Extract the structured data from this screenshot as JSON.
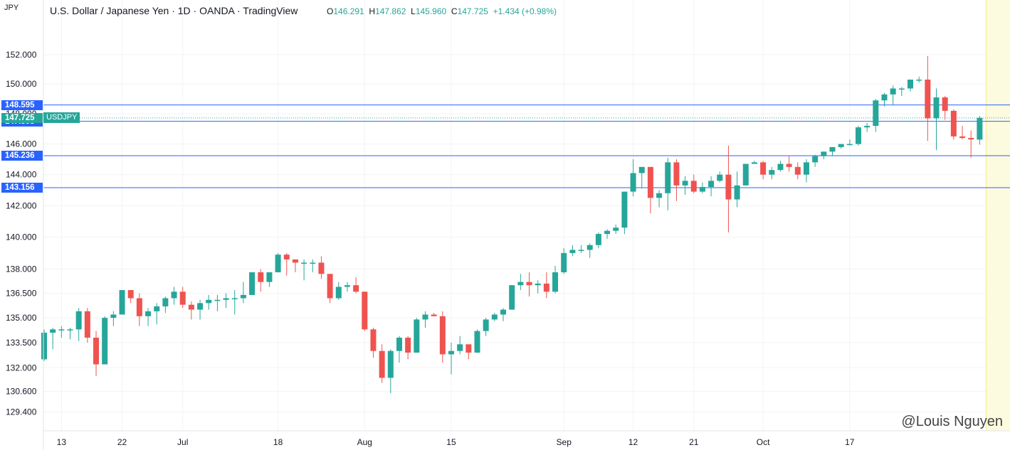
{
  "unit_label": "JPY",
  "header": {
    "title": "U.S. Dollar / Japanese Yen · 1D · OANDA · TradingView",
    "ohlc": {
      "open_prefix": "O",
      "open": "146.291",
      "high_prefix": "H",
      "high": "147.862",
      "low_prefix": "L",
      "low": "145.960",
      "close_prefix": "C",
      "close": "147.725",
      "change": "+1.434 (+0.98%)"
    }
  },
  "price_tag": {
    "symbol": "USDJPY",
    "value": "147.725"
  },
  "levels": [
    {
      "value": 148.595,
      "label": "148.595"
    },
    {
      "value": 147.505,
      "label": "147.505"
    },
    {
      "value": 145.236,
      "label": "145.236"
    },
    {
      "value": 143.156,
      "label": "143.156"
    }
  ],
  "watermark": "@Louis Nguyen",
  "colors": {
    "up": "#26a69a",
    "down": "#ef5350",
    "level_line": "#2962ff",
    "level_tag": "#2962ff",
    "future_zone": "#fdfbdf"
  },
  "chart_data": {
    "type": "candlestick",
    "title": "U.S. Dollar / Japanese Yen · 1D · OANDA · TradingView",
    "ylabel": "JPY",
    "scale": "log",
    "ylim": [
      128.3,
      154.3
    ],
    "y_ticks": [
      "152.000",
      "150.000",
      "148.000",
      "146.000",
      "144.000",
      "142.000",
      "140.000",
      "138.000",
      "136.500",
      "135.000",
      "133.500",
      "132.000",
      "130.600",
      "129.400"
    ],
    "x_ticks": [
      {
        "label": "13",
        "index": 2
      },
      {
        "label": "22",
        "index": 9
      },
      {
        "label": "Jul",
        "index": 16
      },
      {
        "label": "18",
        "index": 27
      },
      {
        "label": "Aug",
        "index": 37
      },
      {
        "label": "15",
        "index": 47
      },
      {
        "label": "Sep",
        "index": 60
      },
      {
        "label": "12",
        "index": 68
      },
      {
        "label": "21",
        "index": 75
      },
      {
        "label": "Oct",
        "index": 83
      },
      {
        "label": "17",
        "index": 93
      }
    ],
    "total_slots": 100,
    "candles": [
      [
        132.5,
        134.3,
        132.4,
        134.1
      ],
      [
        134.1,
        134.4,
        133.1,
        134.3
      ],
      [
        134.3,
        134.5,
        133.8,
        134.3
      ],
      [
        134.3,
        134.4,
        133.7,
        134.3
      ],
      [
        134.3,
        135.6,
        133.6,
        135.4
      ],
      [
        135.4,
        135.6,
        133.5,
        133.8
      ],
      [
        133.8,
        134.2,
        131.5,
        132.2
      ],
      [
        132.2,
        135.1,
        132.2,
        135.0
      ],
      [
        135.0,
        135.4,
        134.5,
        135.2
      ],
      [
        135.2,
        136.7,
        135.2,
        136.7
      ],
      [
        136.7,
        136.7,
        135.9,
        136.2
      ],
      [
        136.2,
        136.5,
        134.5,
        135.1
      ],
      [
        135.1,
        135.6,
        134.5,
        135.4
      ],
      [
        135.4,
        135.9,
        134.6,
        135.7
      ],
      [
        135.7,
        136.3,
        135.3,
        136.2
      ],
      [
        136.2,
        136.9,
        135.8,
        136.6
      ],
      [
        136.6,
        136.9,
        135.6,
        135.8
      ],
      [
        135.8,
        136.0,
        134.9,
        135.5
      ],
      [
        135.5,
        136.1,
        134.9,
        135.9
      ],
      [
        135.9,
        136.4,
        135.5,
        136.1
      ],
      [
        136.1,
        136.4,
        135.4,
        136.1
      ],
      [
        136.1,
        136.5,
        135.6,
        136.2
      ],
      [
        136.2,
        136.7,
        135.2,
        136.2
      ],
      [
        136.2,
        137.2,
        135.9,
        136.4
      ],
      [
        136.4,
        137.8,
        136.4,
        137.8
      ],
      [
        137.8,
        138.0,
        136.6,
        137.2
      ],
      [
        137.2,
        137.8,
        136.9,
        137.8
      ],
      [
        137.8,
        139.0,
        137.8,
        138.9
      ],
      [
        138.9,
        139.0,
        137.6,
        138.6
      ],
      [
        138.6,
        138.6,
        137.8,
        138.4
      ],
      [
        138.4,
        138.6,
        137.3,
        138.4
      ],
      [
        138.4,
        138.6,
        137.8,
        138.4
      ],
      [
        138.4,
        138.8,
        137.4,
        137.7
      ],
      [
        137.7,
        137.7,
        135.9,
        136.2
      ],
      [
        136.2,
        137.2,
        136.1,
        136.9
      ],
      [
        136.9,
        137.2,
        136.6,
        137.0
      ],
      [
        137.0,
        137.5,
        136.5,
        136.6
      ],
      [
        136.6,
        136.6,
        134.2,
        134.3
      ],
      [
        134.3,
        134.4,
        132.6,
        133.0
      ],
      [
        133.0,
        133.4,
        131.1,
        131.4
      ],
      [
        131.4,
        133.1,
        130.5,
        133.0
      ],
      [
        133.0,
        133.9,
        132.3,
        133.8
      ],
      [
        133.8,
        133.9,
        132.5,
        132.9
      ],
      [
        132.9,
        135.0,
        132.9,
        134.9
      ],
      [
        134.9,
        135.4,
        134.4,
        135.2
      ],
      [
        135.2,
        135.3,
        135.1,
        135.1
      ],
      [
        135.1,
        135.4,
        132.3,
        132.8
      ],
      [
        132.8,
        133.5,
        131.6,
        133.0
      ],
      [
        133.0,
        133.9,
        132.8,
        133.4
      ],
      [
        133.4,
        133.4,
        132.5,
        132.9
      ],
      [
        132.9,
        134.3,
        132.9,
        134.2
      ],
      [
        134.2,
        135.0,
        133.9,
        134.9
      ],
      [
        134.9,
        135.3,
        134.8,
        135.2
      ],
      [
        135.2,
        135.6,
        134.8,
        135.5
      ],
      [
        135.5,
        137.0,
        135.5,
        137.0
      ],
      [
        137.0,
        137.7,
        136.7,
        137.2
      ],
      [
        137.2,
        137.8,
        136.3,
        137.0
      ],
      [
        137.0,
        137.3,
        136.5,
        137.1
      ],
      [
        137.1,
        137.8,
        136.2,
        136.6
      ],
      [
        136.6,
        138.2,
        136.5,
        137.8
      ],
      [
        137.8,
        139.3,
        137.7,
        139.0
      ],
      [
        139.0,
        139.5,
        138.8,
        139.2
      ],
      [
        139.2,
        139.5,
        139.0,
        139.2
      ],
      [
        139.2,
        139.6,
        138.7,
        139.5
      ],
      [
        139.5,
        140.3,
        139.3,
        140.2
      ],
      [
        140.2,
        140.5,
        139.9,
        140.4
      ],
      [
        140.4,
        140.8,
        140.2,
        140.6
      ],
      [
        140.6,
        142.9,
        140.2,
        142.9
      ],
      [
        142.9,
        145.0,
        142.6,
        144.1
      ],
      [
        144.1,
        144.5,
        143.1,
        144.5
      ],
      [
        144.5,
        144.5,
        141.5,
        142.5
      ],
      [
        142.5,
        143.0,
        141.9,
        142.8
      ],
      [
        142.8,
        145.1,
        141.7,
        144.8
      ],
      [
        144.8,
        145.0,
        142.3,
        143.3
      ],
      [
        143.3,
        143.9,
        142.7,
        143.6
      ],
      [
        143.6,
        144.0,
        142.8,
        142.9
      ],
      [
        142.9,
        143.5,
        142.8,
        143.2
      ],
      [
        143.2,
        143.9,
        142.6,
        143.6
      ],
      [
        143.6,
        144.2,
        143.5,
        144.0
      ],
      [
        144.0,
        145.9,
        140.3,
        142.4
      ],
      [
        142.4,
        144.2,
        141.9,
        143.3
      ],
      [
        143.3,
        144.7,
        143.3,
        144.7
      ],
      [
        144.7,
        144.9,
        144.7,
        144.8
      ],
      [
        144.8,
        144.9,
        143.7,
        144.0
      ],
      [
        144.0,
        144.5,
        143.7,
        144.3
      ],
      [
        144.3,
        144.9,
        144.2,
        144.7
      ],
      [
        144.7,
        145.2,
        144.2,
        144.5
      ],
      [
        144.5,
        144.8,
        143.7,
        144.0
      ],
      [
        144.0,
        145.0,
        143.5,
        144.8
      ],
      [
        144.8,
        145.3,
        144.5,
        145.2
      ],
      [
        145.2,
        145.5,
        145.0,
        145.5
      ],
      [
        145.5,
        145.8,
        145.2,
        145.8
      ],
      [
        145.8,
        146.0,
        145.7,
        146.0
      ],
      [
        146.0,
        146.3,
        145.9,
        146.0
      ],
      [
        146.0,
        147.2,
        145.9,
        147.1
      ],
      [
        147.1,
        147.4,
        146.8,
        147.2
      ],
      [
        147.2,
        149.0,
        146.8,
        148.9
      ],
      [
        148.9,
        149.4,
        148.5,
        149.3
      ],
      [
        149.3,
        149.9,
        148.6,
        149.7
      ],
      [
        149.7,
        149.8,
        149.2,
        149.7
      ],
      [
        149.7,
        150.3,
        149.5,
        150.3
      ],
      [
        150.3,
        150.5,
        150.1,
        150.3
      ],
      [
        150.3,
        151.9,
        146.2,
        147.7
      ],
      [
        147.7,
        149.7,
        145.6,
        149.1
      ],
      [
        149.1,
        149.2,
        147.6,
        148.2
      ],
      [
        148.2,
        148.3,
        146.3,
        146.5
      ],
      [
        146.5,
        147.2,
        146.3,
        146.4
      ],
      [
        146.4,
        146.9,
        145.1,
        146.3
      ],
      [
        146.29,
        147.86,
        145.96,
        147.73
      ]
    ]
  }
}
